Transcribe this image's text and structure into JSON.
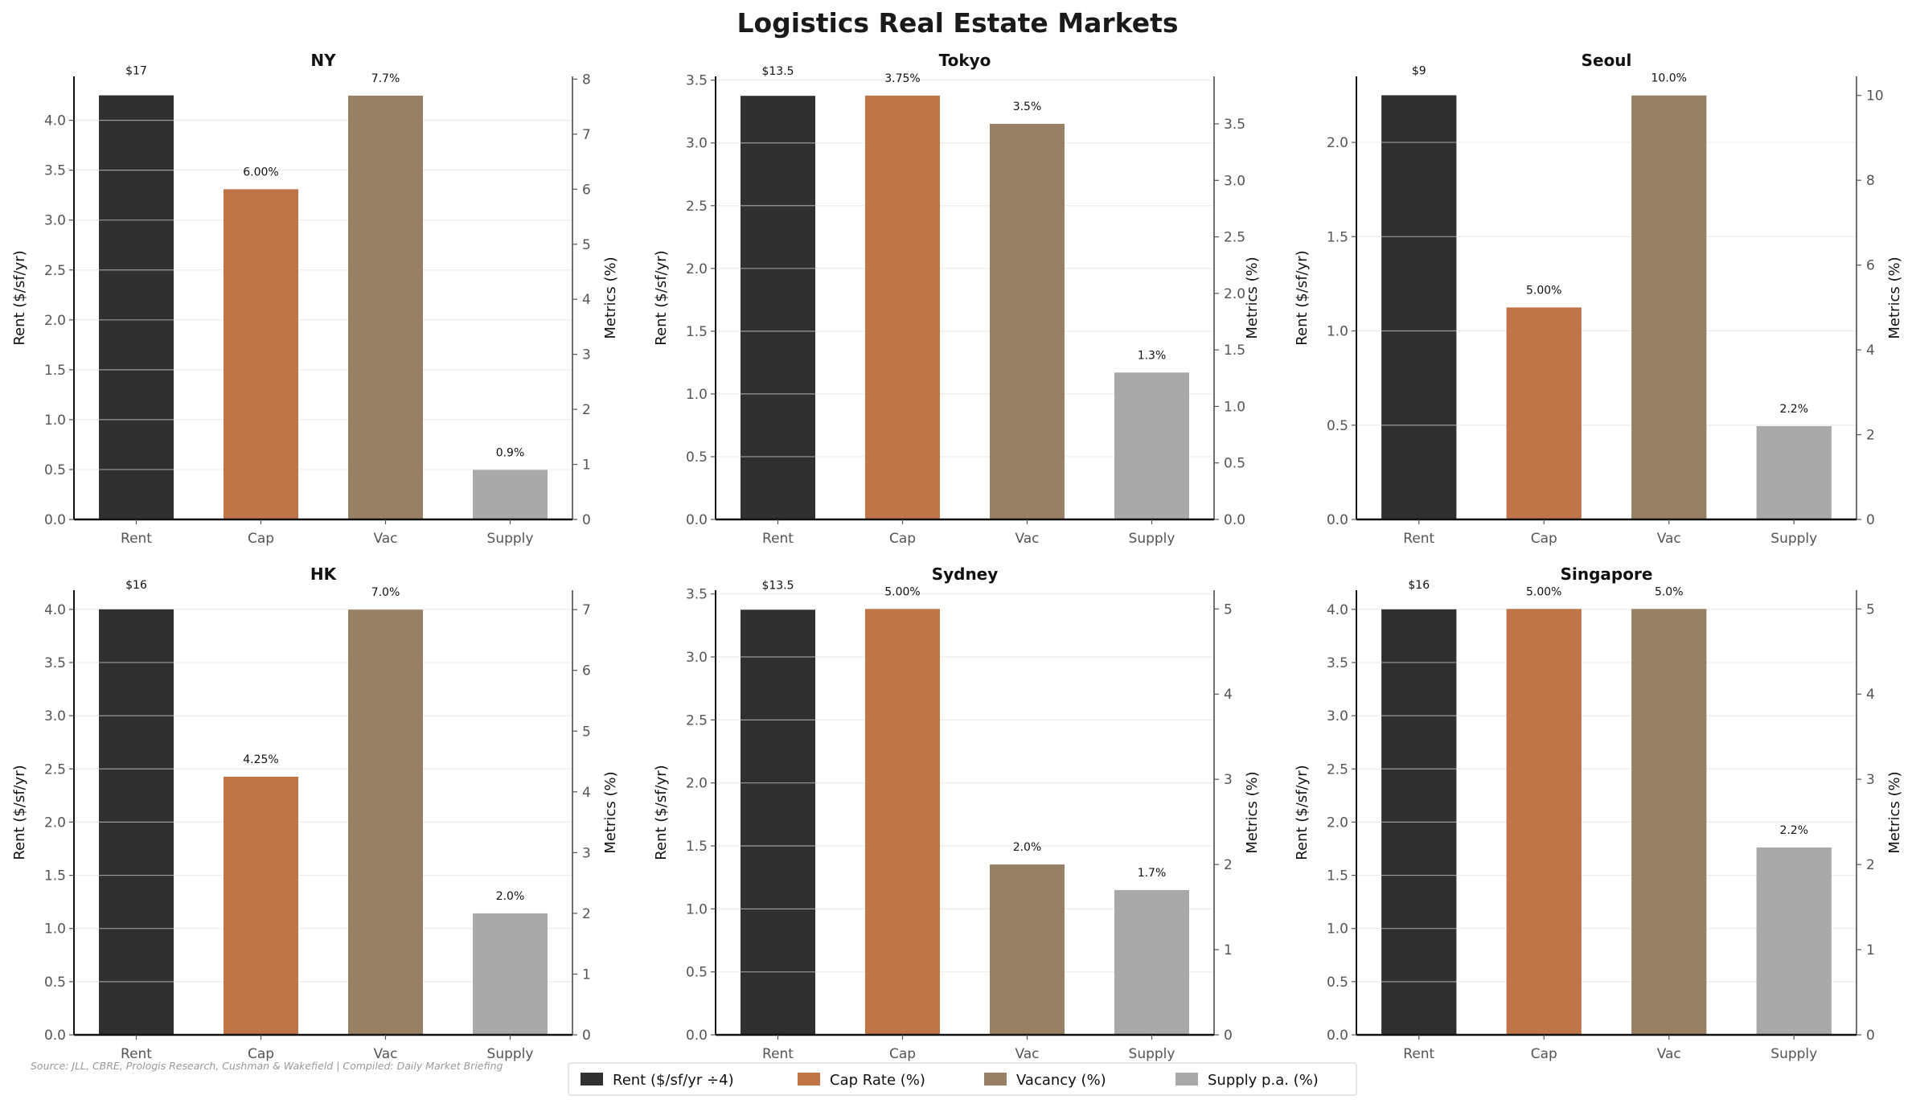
{
  "chart_data": {
    "title": "Logistics Real Estate Markets",
    "type": "bar",
    "categories": [
      "Rent",
      "Cap",
      "Vac",
      "Supply"
    ],
    "ylabel_left": "Rent ($/sf/yr)",
    "ylabel_right": "Metrics (%)",
    "grid": true,
    "legend_placement": "bottom-center",
    "legend": [
      {
        "label": "Rent ($/sf/yr ÷4)",
        "color": "#303030"
      },
      {
        "label": "Cap Rate (%)",
        "color": "#bf7548"
      },
      {
        "label": "Vacancy (%)",
        "color": "#988065"
      },
      {
        "label": "Supply p.a. (%)",
        "color": "#a9a9a9"
      }
    ],
    "source": "Source: JLL, CBRE, Prologis Research, Cushman & Wakefield | Compiled: Daily Market Briefing",
    "panels": [
      {
        "market": "NY",
        "rent": 17,
        "rent_scaled": 4.25,
        "cap": 6.0,
        "vacancy": 7.7,
        "supply": 0.9,
        "labels": [
          "$17",
          "6.00%",
          "7.7%",
          "0.9%"
        ],
        "left_ticks": [
          "0.0",
          "0.5",
          "1.0",
          "1.5",
          "2.0",
          "2.5",
          "3.0",
          "3.5",
          "4.0"
        ],
        "right_ticks": [
          "0",
          "1",
          "2",
          "3",
          "4",
          "5",
          "6",
          "7",
          "8"
        ],
        "left_ylim": [
          0,
          4.44
        ],
        "right_ylim": [
          0,
          8.05
        ]
      },
      {
        "market": "Tokyo",
        "rent": 13.5,
        "rent_scaled": 3.375,
        "cap": 3.75,
        "vacancy": 3.5,
        "supply": 1.3,
        "labels": [
          "$13.5",
          "3.75%",
          "3.5%",
          "1.3%"
        ],
        "left_ticks": [
          "0.0",
          "0.5",
          "1.0",
          "1.5",
          "2.0",
          "2.5",
          "3.0",
          "3.5"
        ],
        "right_ticks": [
          "0.0",
          "0.5",
          "1.0",
          "1.5",
          "2.0",
          "2.5",
          "3.0",
          "3.5"
        ],
        "left_ylim": [
          0,
          3.53
        ],
        "right_ylim": [
          0,
          3.92
        ]
      },
      {
        "market": "Seoul",
        "rent": 9,
        "rent_scaled": 2.25,
        "cap": 5.0,
        "vacancy": 10.0,
        "supply": 2.2,
        "labels": [
          "$9",
          "5.00%",
          "10.0%",
          "2.2%"
        ],
        "left_ticks": [
          "0.0",
          "0.5",
          "1.0",
          "1.5",
          "2.0"
        ],
        "right_ticks": [
          "0",
          "2",
          "4",
          "6",
          "8",
          "10"
        ],
        "left_ylim": [
          0,
          2.35
        ],
        "right_ylim": [
          0,
          10.45
        ]
      },
      {
        "market": "HK",
        "rent": 16,
        "rent_scaled": 4.0,
        "cap": 4.25,
        "vacancy": 7.0,
        "supply": 2.0,
        "labels": [
          "$16",
          "4.25%",
          "7.0%",
          "2.0%"
        ],
        "left_ticks": [
          "0.0",
          "0.5",
          "1.0",
          "1.5",
          "2.0",
          "2.5",
          "3.0",
          "3.5",
          "4.0"
        ],
        "right_ticks": [
          "0",
          "1",
          "2",
          "3",
          "4",
          "5",
          "6",
          "7"
        ],
        "left_ylim": [
          0,
          4.18
        ],
        "right_ylim": [
          0,
          7.32
        ]
      },
      {
        "market": "Sydney",
        "rent": 13.5,
        "rent_scaled": 3.375,
        "cap": 5.0,
        "vacancy": 2.0,
        "supply": 1.7,
        "labels": [
          "$13.5",
          "5.00%",
          "2.0%",
          "1.7%"
        ],
        "left_ticks": [
          "0.0",
          "0.5",
          "1.0",
          "1.5",
          "2.0",
          "2.5",
          "3.0",
          "3.5"
        ],
        "right_ticks": [
          "0",
          "1",
          "2",
          "3",
          "4",
          "5"
        ],
        "left_ylim": [
          0,
          3.53
        ],
        "right_ylim": [
          0,
          5.22
        ]
      },
      {
        "market": "Singapore",
        "rent": 16,
        "rent_scaled": 4.0,
        "cap": 5.0,
        "vacancy": 5.0,
        "supply": 2.2,
        "labels": [
          "$16",
          "5.00%",
          "5.0%",
          "2.2%"
        ],
        "left_ticks": [
          "0.0",
          "0.5",
          "1.0",
          "1.5",
          "2.0",
          "2.5",
          "3.0",
          "3.5",
          "4.0"
        ],
        "right_ticks": [
          "0",
          "1",
          "2",
          "3",
          "4",
          "5"
        ],
        "left_ylim": [
          0,
          4.18
        ],
        "right_ylim": [
          0,
          5.22
        ]
      }
    ]
  }
}
